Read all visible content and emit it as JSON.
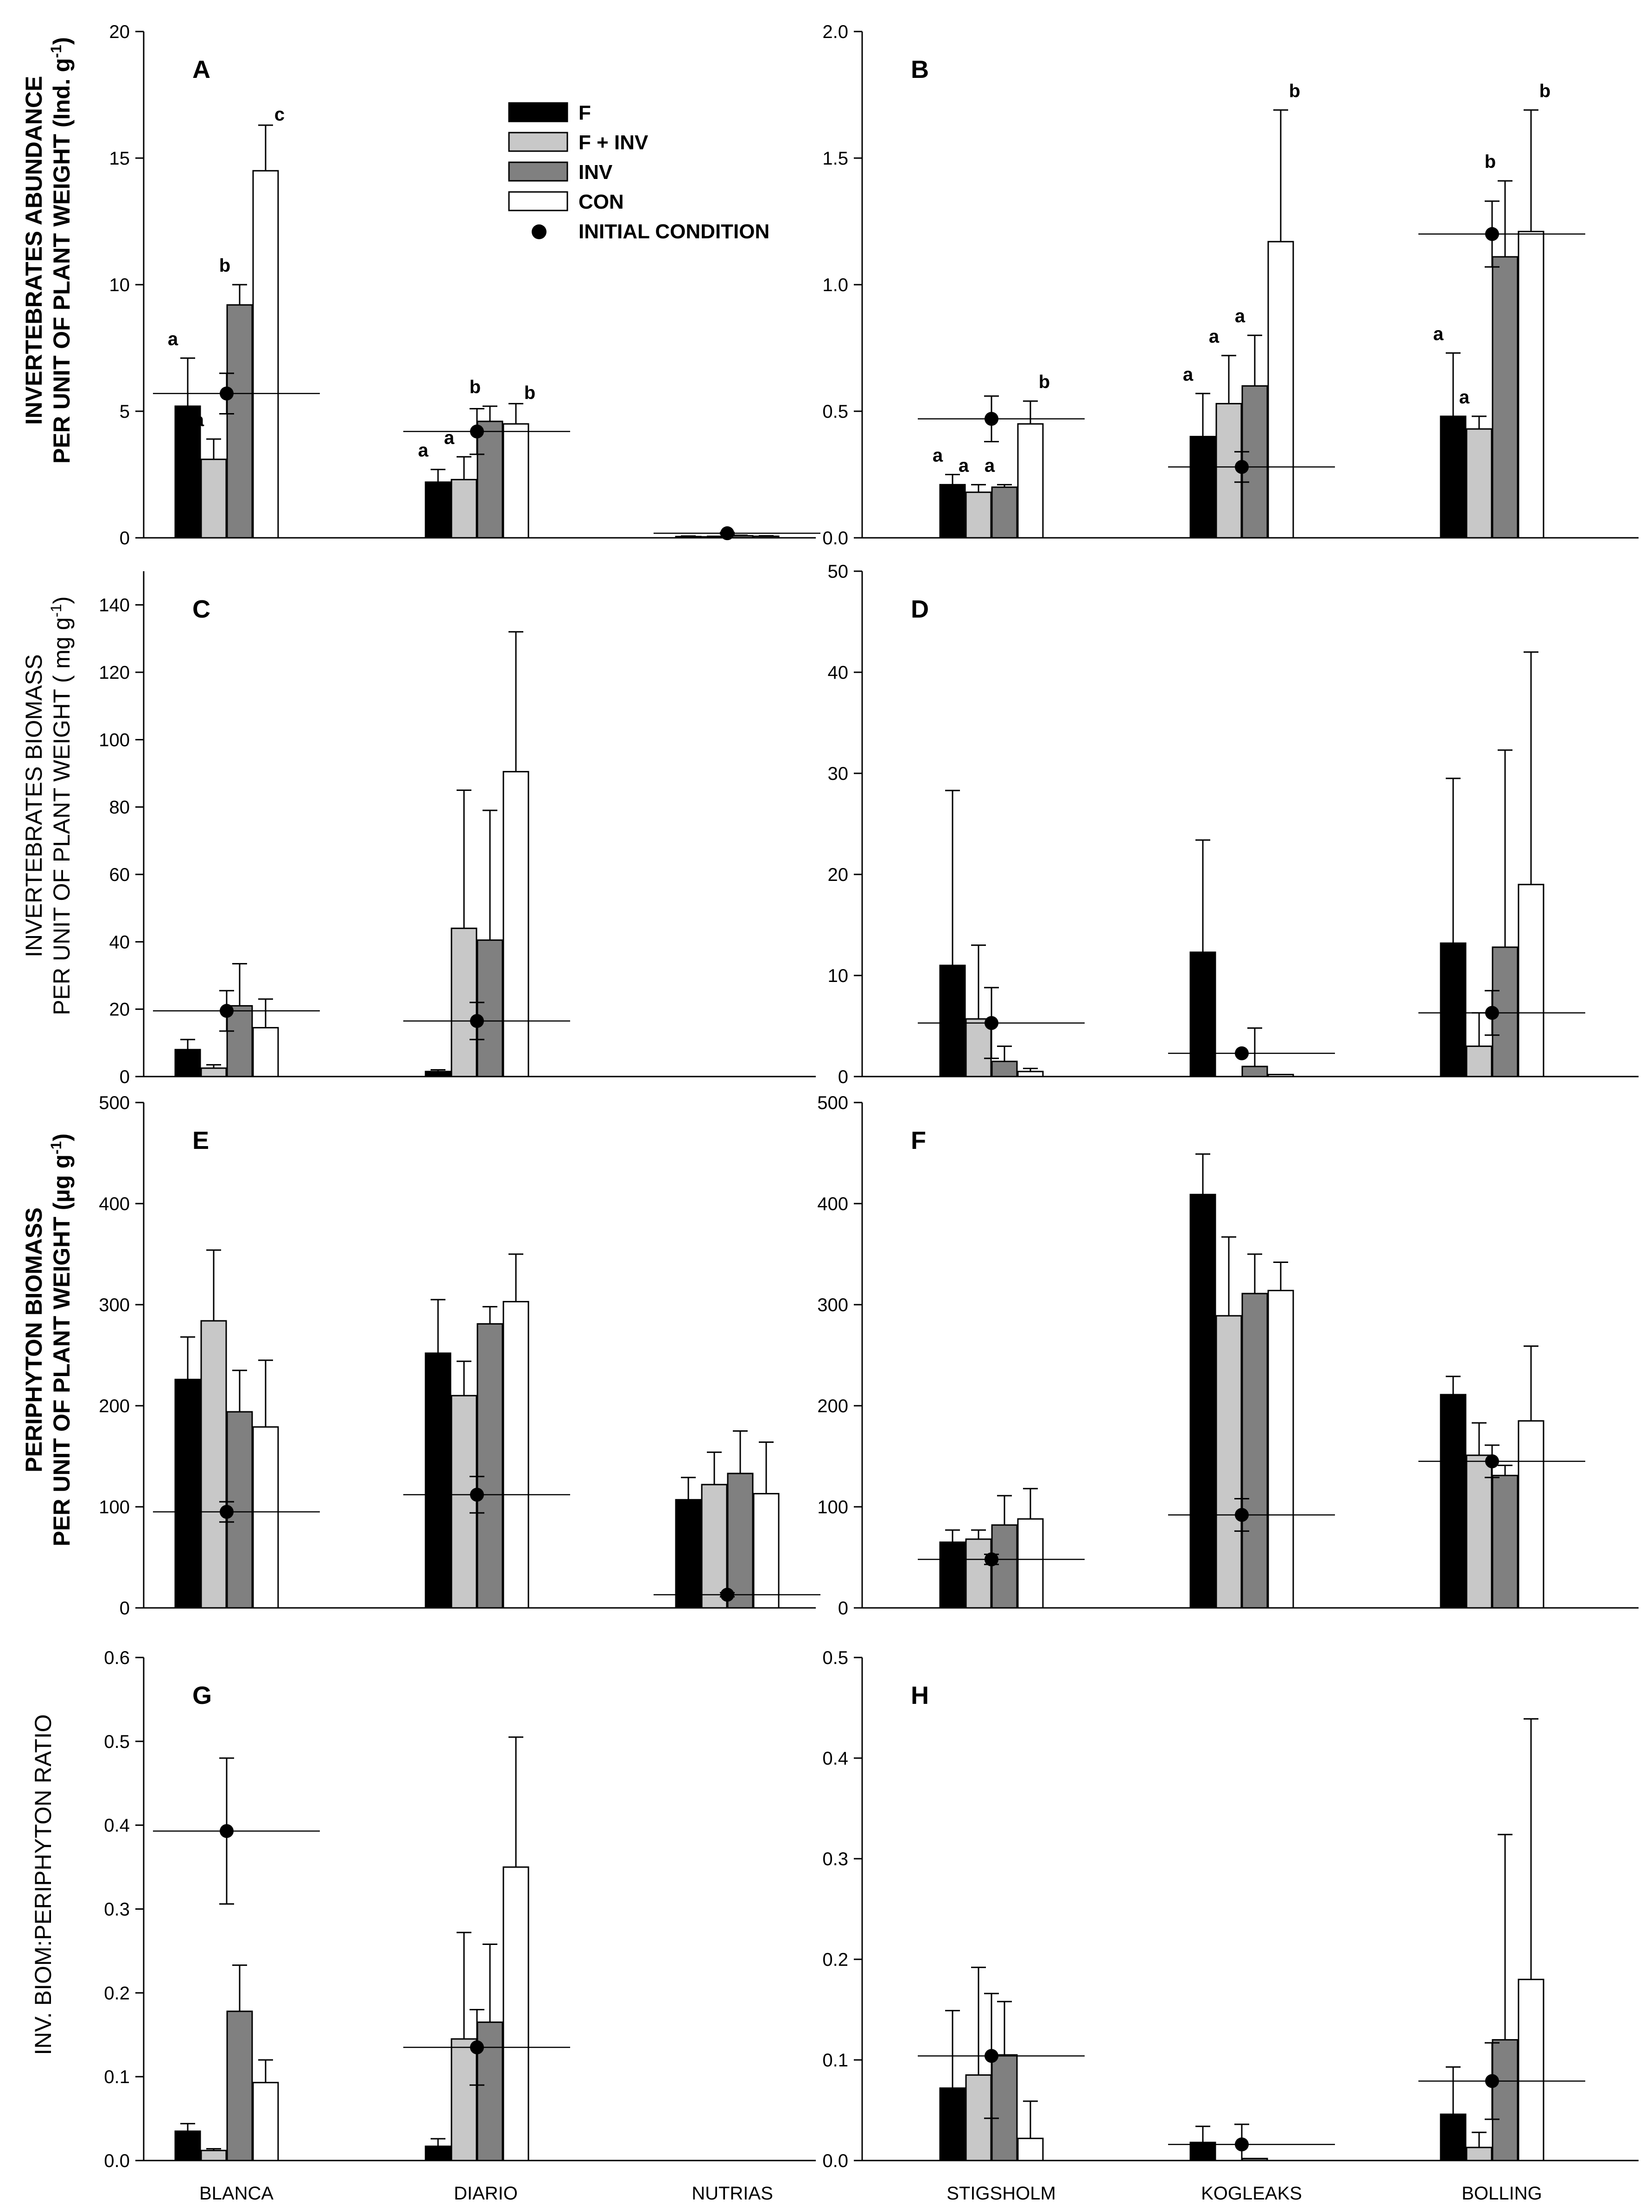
{
  "legend": {
    "items": [
      {
        "label": "F",
        "color": "#000000"
      },
      {
        "label": "F + INV",
        "color": "#c8c8c8"
      },
      {
        "label": "INV",
        "color": "#808080"
      },
      {
        "label": "CON",
        "color": "#ffffff"
      }
    ],
    "initial_label": "INITIAL CONDITION"
  },
  "row_labels": [
    {
      "line1": "INVERTEBRATES ABUNDANCE",
      "line2": "PER UNIT OF PLANT WEIGHT  (Ind. g",
      "sup": "-1",
      "close": ")"
    },
    {
      "line1": "INVERTEBRATES BIOMASS",
      "line2": "PER UNIT OF PLANT WEIGHT  ( mg g",
      "sup": "-1",
      "close": ")"
    },
    {
      "line1": "PERIPHYTON BIOMASS",
      "line2": "PER UNIT OF PLANT WEIGHT  (µg g",
      "sup": "-1",
      "close": ")"
    },
    {
      "line1": "INV. BIOM:PERIPHYTON RATIO"
    }
  ],
  "x_categories_left": [
    "BLANCA",
    "DIARIO",
    "NUTRIAS"
  ],
  "x_categories_right": [
    "STIGSHOLM",
    "KOGLEAKS",
    "BOLLING"
  ],
  "chart_data": [
    {
      "type": "bar",
      "panel": "A",
      "categories": [
        "BLANCA",
        "DIARIO",
        "NUTRIAS"
      ],
      "ylim": [
        0,
        20
      ],
      "yticks": [
        0,
        5,
        10,
        15,
        20
      ],
      "series": [
        {
          "name": "F",
          "values": [
            5.2,
            2.2,
            0.05
          ],
          "err": [
            1.9,
            0.5,
            0.02
          ]
        },
        {
          "name": "F + INV",
          "values": [
            3.1,
            2.3,
            0.04
          ],
          "err": [
            0.8,
            0.9,
            0.02
          ]
        },
        {
          "name": "INV",
          "values": [
            9.2,
            4.6,
            0.08
          ],
          "err": [
            0.8,
            0.6,
            0.02
          ]
        },
        {
          "name": "CON",
          "values": [
            14.5,
            4.5,
            0.06
          ],
          "err": [
            1.8,
            0.8,
            0.02
          ]
        }
      ],
      "initial": [
        {
          "value": 5.7,
          "err": 0.8
        },
        {
          "value": 4.2,
          "err": 0.9
        },
        {
          "value": 0.18,
          "err": 0.03
        }
      ],
      "letters": [
        [
          "a",
          "a",
          "b",
          "c"
        ],
        [
          "a",
          "a",
          "b",
          "b"
        ],
        [
          "",
          "",
          "",
          ""
        ]
      ]
    },
    {
      "type": "bar",
      "panel": "B",
      "categories": [
        "STIGSHOLM",
        "KOGLEAKS",
        "BOLLING"
      ],
      "ylim": [
        0,
        2
      ],
      "yticks": [
        0.0,
        0.5,
        1.0,
        1.5,
        2.0
      ],
      "series": [
        {
          "name": "F",
          "values": [
            0.21,
            0.4,
            0.48
          ],
          "err": [
            0.04,
            0.17,
            0.25
          ]
        },
        {
          "name": "F + INV",
          "values": [
            0.18,
            0.53,
            0.43
          ],
          "err": [
            0.03,
            0.19,
            0.05
          ]
        },
        {
          "name": "INV",
          "values": [
            0.2,
            0.6,
            1.11
          ],
          "err": [
            0.01,
            0.2,
            0.3
          ]
        },
        {
          "name": "CON",
          "values": [
            0.45,
            1.17,
            1.21
          ],
          "err": [
            0.09,
            0.52,
            0.48
          ]
        }
      ],
      "initial": [
        {
          "value": 0.47,
          "err": 0.09
        },
        {
          "value": 0.28,
          "err": 0.06
        },
        {
          "value": 1.2,
          "err": 0.13
        }
      ],
      "letters": [
        [
          "a",
          "a",
          "a",
          "b"
        ],
        [
          "a",
          "a",
          "a",
          "b"
        ],
        [
          "a",
          "a",
          "b",
          "b"
        ]
      ]
    },
    {
      "type": "bar",
      "panel": "C",
      "categories": [
        "BLANCA",
        "DIARIO",
        "NUTRIAS"
      ],
      "ylim": [
        0,
        150
      ],
      "yticks": [
        0,
        20,
        40,
        60,
        80,
        100,
        120,
        140
      ],
      "series": [
        {
          "name": "F",
          "values": [
            8,
            1.5,
            null
          ],
          "err": [
            3,
            0.5,
            null
          ]
        },
        {
          "name": "F + INV",
          "values": [
            2.5,
            44,
            null
          ],
          "err": [
            1,
            41,
            null
          ]
        },
        {
          "name": "INV",
          "values": [
            21,
            40.5,
            null
          ],
          "err": [
            12.5,
            38.5,
            null
          ]
        },
        {
          "name": "CON",
          "values": [
            14.5,
            90.5,
            null
          ],
          "err": [
            8.5,
            41.5,
            null
          ]
        }
      ],
      "initial": [
        {
          "value": 19.5,
          "err": 6
        },
        {
          "value": 16.5,
          "err": 5.5
        },
        null
      ],
      "letters": [
        [
          "",
          "",
          "",
          ""
        ],
        [
          "",
          "",
          "",
          ""
        ],
        [
          "",
          "",
          "",
          ""
        ]
      ]
    },
    {
      "type": "bar",
      "panel": "D",
      "categories": [
        "STIGSHOLM",
        "KOGLEAKS",
        "BOLLING"
      ],
      "ylim": [
        0,
        50
      ],
      "yticks": [
        0,
        10,
        20,
        30,
        40,
        50
      ],
      "series": [
        {
          "name": "F",
          "values": [
            11,
            12.3,
            13.2
          ],
          "err": [
            17.3,
            11.1,
            16.3
          ]
        },
        {
          "name": "F + INV",
          "values": [
            5.7,
            null,
            3
          ],
          "err": [
            7.3,
            null,
            3.3
          ]
        },
        {
          "name": "INV",
          "values": [
            1.5,
            1,
            12.8
          ],
          "err": [
            1.5,
            3.8,
            19.5
          ]
        },
        {
          "name": "CON",
          "values": [
            0.5,
            0.2,
            19
          ],
          "err": [
            0.3,
            0,
            23
          ]
        }
      ],
      "initial": [
        {
          "value": 5.3,
          "err": 3.5
        },
        {
          "value": 2.3,
          "err": 0
        },
        {
          "value": 6.3,
          "err": 2.2
        }
      ],
      "letters": [
        [
          "",
          "",
          "",
          ""
        ],
        [
          "",
          "",
          "",
          ""
        ],
        [
          "",
          "",
          "",
          ""
        ]
      ]
    },
    {
      "type": "bar",
      "panel": "E",
      "categories": [
        "BLANCA",
        "DIARIO",
        "NUTRIAS"
      ],
      "ylim": [
        0,
        500
      ],
      "yticks": [
        0,
        100,
        200,
        300,
        400,
        500
      ],
      "series": [
        {
          "name": "F",
          "values": [
            226,
            252,
            107
          ],
          "err": [
            42,
            53,
            22
          ]
        },
        {
          "name": "F + INV",
          "values": [
            284,
            210,
            122
          ],
          "err": [
            70,
            34,
            32
          ]
        },
        {
          "name": "INV",
          "values": [
            194,
            281,
            133
          ],
          "err": [
            41,
            17,
            42
          ]
        },
        {
          "name": "CON",
          "values": [
            179,
            303,
            113
          ],
          "err": [
            66,
            47,
            51
          ]
        }
      ],
      "initial": [
        {
          "value": 95,
          "err": 10
        },
        {
          "value": 112,
          "err": 18
        },
        {
          "value": 13,
          "err": 2
        }
      ],
      "letters": [
        [
          "",
          "",
          "",
          ""
        ],
        [
          "",
          "",
          "",
          ""
        ],
        [
          "",
          "",
          "",
          ""
        ]
      ]
    },
    {
      "type": "bar",
      "panel": "F",
      "categories": [
        "STIGSHOLM",
        "KOGLEAKS",
        "BOLLING"
      ],
      "ylim": [
        0,
        500
      ],
      "yticks": [
        0,
        100,
        200,
        300,
        400,
        500
      ],
      "series": [
        {
          "name": "F",
          "values": [
            65,
            409,
            211
          ],
          "err": [
            12,
            40,
            18
          ]
        },
        {
          "name": "F + INV",
          "values": [
            68,
            289,
            151
          ],
          "err": [
            9,
            78,
            32
          ]
        },
        {
          "name": "INV",
          "values": [
            82,
            311,
            131
          ],
          "err": [
            29,
            39,
            10
          ]
        },
        {
          "name": "CON",
          "values": [
            88,
            314,
            185
          ],
          "err": [
            30,
            28,
            74
          ]
        }
      ],
      "initial": [
        {
          "value": 48,
          "err": 5
        },
        {
          "value": 92,
          "err": 16
        },
        {
          "value": 145,
          "err": 16
        }
      ],
      "letters": [
        [
          "",
          "",
          "",
          ""
        ],
        [
          "",
          "",
          "",
          ""
        ],
        [
          "",
          "",
          "",
          ""
        ]
      ]
    },
    {
      "type": "bar",
      "panel": "G",
      "categories": [
        "BLANCA",
        "DIARIO",
        "NUTRIAS"
      ],
      "ylim": [
        0,
        0.6
      ],
      "yticks": [
        0.0,
        0.1,
        0.2,
        0.3,
        0.4,
        0.5,
        0.6
      ],
      "series": [
        {
          "name": "F",
          "values": [
            0.035,
            0.017,
            null
          ],
          "err": [
            0.009,
            0.009,
            null
          ]
        },
        {
          "name": "F + INV",
          "values": [
            0.012,
            0.145,
            null
          ],
          "err": [
            0.002,
            0.127,
            null
          ]
        },
        {
          "name": "INV",
          "values": [
            0.178,
            0.165,
            null
          ],
          "err": [
            0.055,
            0.093,
            null
          ]
        },
        {
          "name": "CON",
          "values": [
            0.093,
            0.35,
            null
          ],
          "err": [
            0.027,
            0.155,
            null
          ]
        }
      ],
      "initial": [
        {
          "value": 0.393,
          "err": 0.087
        },
        {
          "value": 0.135,
          "err": 0.045
        },
        null
      ],
      "letters": [
        [
          "",
          "",
          "",
          ""
        ],
        [
          "",
          "",
          "",
          ""
        ],
        [
          "",
          "",
          "",
          ""
        ]
      ]
    },
    {
      "type": "bar",
      "panel": "H",
      "categories": [
        "STIGSHOLM",
        "KOGLEAKS",
        "BOLLING"
      ],
      "ylim": [
        0,
        0.5
      ],
      "yticks": [
        0.0,
        0.1,
        0.2,
        0.3,
        0.4,
        0.5
      ],
      "series": [
        {
          "name": "F",
          "values": [
            0.072,
            0.018,
            0.046
          ],
          "err": [
            0.077,
            0.016,
            0.047
          ]
        },
        {
          "name": "F + INV",
          "values": [
            0.085,
            null,
            0.013
          ],
          "err": [
            0.107,
            null,
            0.015
          ]
        },
        {
          "name": "INV",
          "values": [
            0.105,
            0.002,
            0.12
          ],
          "err": [
            0.053,
            0,
            0.204
          ]
        },
        {
          "name": "CON",
          "values": [
            0.022,
            null,
            0.18
          ],
          "err": [
            0.037,
            null,
            0.259
          ]
        }
      ],
      "initial": [
        {
          "value": 0.104,
          "err": 0.062
        },
        {
          "value": 0.016,
          "err": 0.02
        },
        {
          "value": 0.079,
          "err": 0.038
        }
      ],
      "letters": [
        [
          "",
          "",
          "",
          ""
        ],
        [
          "",
          "",
          "",
          ""
        ],
        [
          "",
          "",
          "",
          ""
        ]
      ]
    }
  ]
}
